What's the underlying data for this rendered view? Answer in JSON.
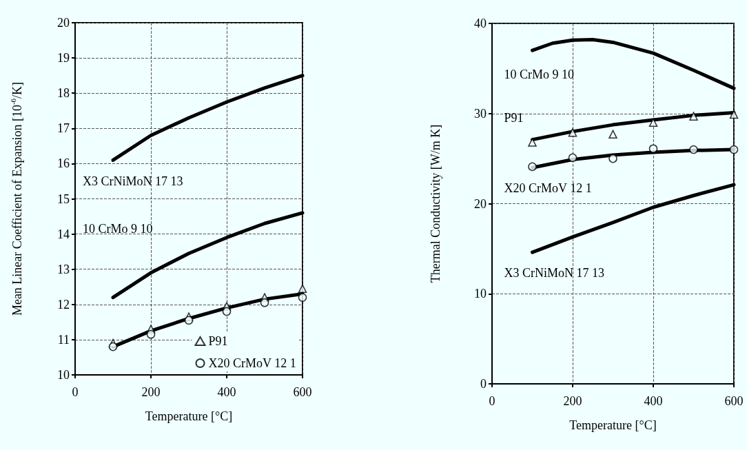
{
  "chart_data": [
    {
      "type": "line",
      "xlabel": "Temperature [°C]",
      "ylabel": "Mean Linear Coefficient of Expansion [10$^{-6}$/K]",
      "xlim": [
        0,
        600
      ],
      "xticks": [
        0,
        200,
        400,
        600
      ],
      "ylim": [
        10,
        20
      ],
      "yticks": [
        10,
        11,
        12,
        13,
        14,
        15,
        16,
        17,
        18,
        19,
        20
      ],
      "grid": true,
      "legend": "bottom right",
      "x": [
        100,
        200,
        300,
        400,
        500,
        600
      ],
      "series": [
        {
          "name": "X3 CrNiMoN 17 13",
          "color": "#000000",
          "marker": "none",
          "values": [
            16.1,
            16.8,
            17.3,
            17.75,
            18.15,
            18.5
          ]
        },
        {
          "name": "10 CrMo 9 10",
          "color": "#000000",
          "marker": "none",
          "values": [
            12.2,
            12.9,
            13.45,
            13.9,
            14.3,
            14.6
          ]
        },
        {
          "color": "#000000",
          "marker": "none",
          "values": [
            10.8,
            11.25,
            11.6,
            11.9,
            12.15,
            12.3
          ]
        },
        {
          "name": "P91",
          "type": "scatter",
          "color": "#000000",
          "marker": "triangle",
          "values": [
            10.9,
            11.3,
            11.65,
            11.95,
            12.2,
            12.45
          ]
        },
        {
          "name": "X20 CrMoV 12 1",
          "type": "scatter",
          "color": "#000000",
          "marker": "circle",
          "values": [
            10.8,
            11.15,
            11.55,
            11.8,
            12.05,
            12.2
          ]
        }
      ]
    },
    {
      "type": "line",
      "xlabel": "Temperature [°C]",
      "ylabel": "Thermal Conductivity [W/m K]",
      "xlim": [
        0,
        600
      ],
      "xticks": [
        0,
        200,
        400,
        600
      ],
      "ylim": [
        0,
        40
      ],
      "yticks": [
        0,
        10,
        20,
        30,
        40
      ],
      "grid": true,
      "series": [
        {
          "name": "10 CrMo 9 10",
          "color": "#000000",
          "marker": "none",
          "x": [
            100,
            150,
            200,
            250,
            300,
            400,
            500,
            600
          ],
          "values": [
            37.0,
            37.8,
            38.15,
            38.2,
            37.9,
            36.7,
            34.8,
            32.8
          ]
        },
        {
          "name": "P91",
          "color": "#000000",
          "marker": "none",
          "x": [
            100,
            200,
            300,
            400,
            500,
            600
          ],
          "values": [
            27.1,
            28.0,
            28.75,
            29.3,
            29.8,
            30.1
          ]
        },
        {
          "name": "X20 CrMoV 12 1",
          "color": "#000000",
          "marker": "none",
          "x": [
            100,
            200,
            300,
            400,
            500,
            600
          ],
          "values": [
            24.0,
            24.9,
            25.4,
            25.7,
            25.9,
            26.0
          ]
        },
        {
          "name": "X3 CrNiMoN 17 13",
          "color": "#000000",
          "marker": "none",
          "x": [
            100,
            200,
            300,
            400,
            500,
            600
          ],
          "values": [
            14.6,
            16.3,
            17.9,
            19.6,
            20.9,
            22.1
          ]
        },
        {
          "type": "scatter",
          "color": "#000000",
          "marker": "triangle",
          "x": [
            100,
            200,
            300,
            400,
            500,
            600
          ],
          "values": [
            26.8,
            27.9,
            27.7,
            29.0,
            29.7,
            29.9
          ]
        },
        {
          "type": "scatter",
          "color": "#000000",
          "marker": "circle",
          "x": [
            100,
            200,
            300,
            400,
            500,
            600
          ],
          "values": [
            24.1,
            25.1,
            25.0,
            26.1,
            26.0,
            26.0
          ]
        }
      ]
    }
  ]
}
